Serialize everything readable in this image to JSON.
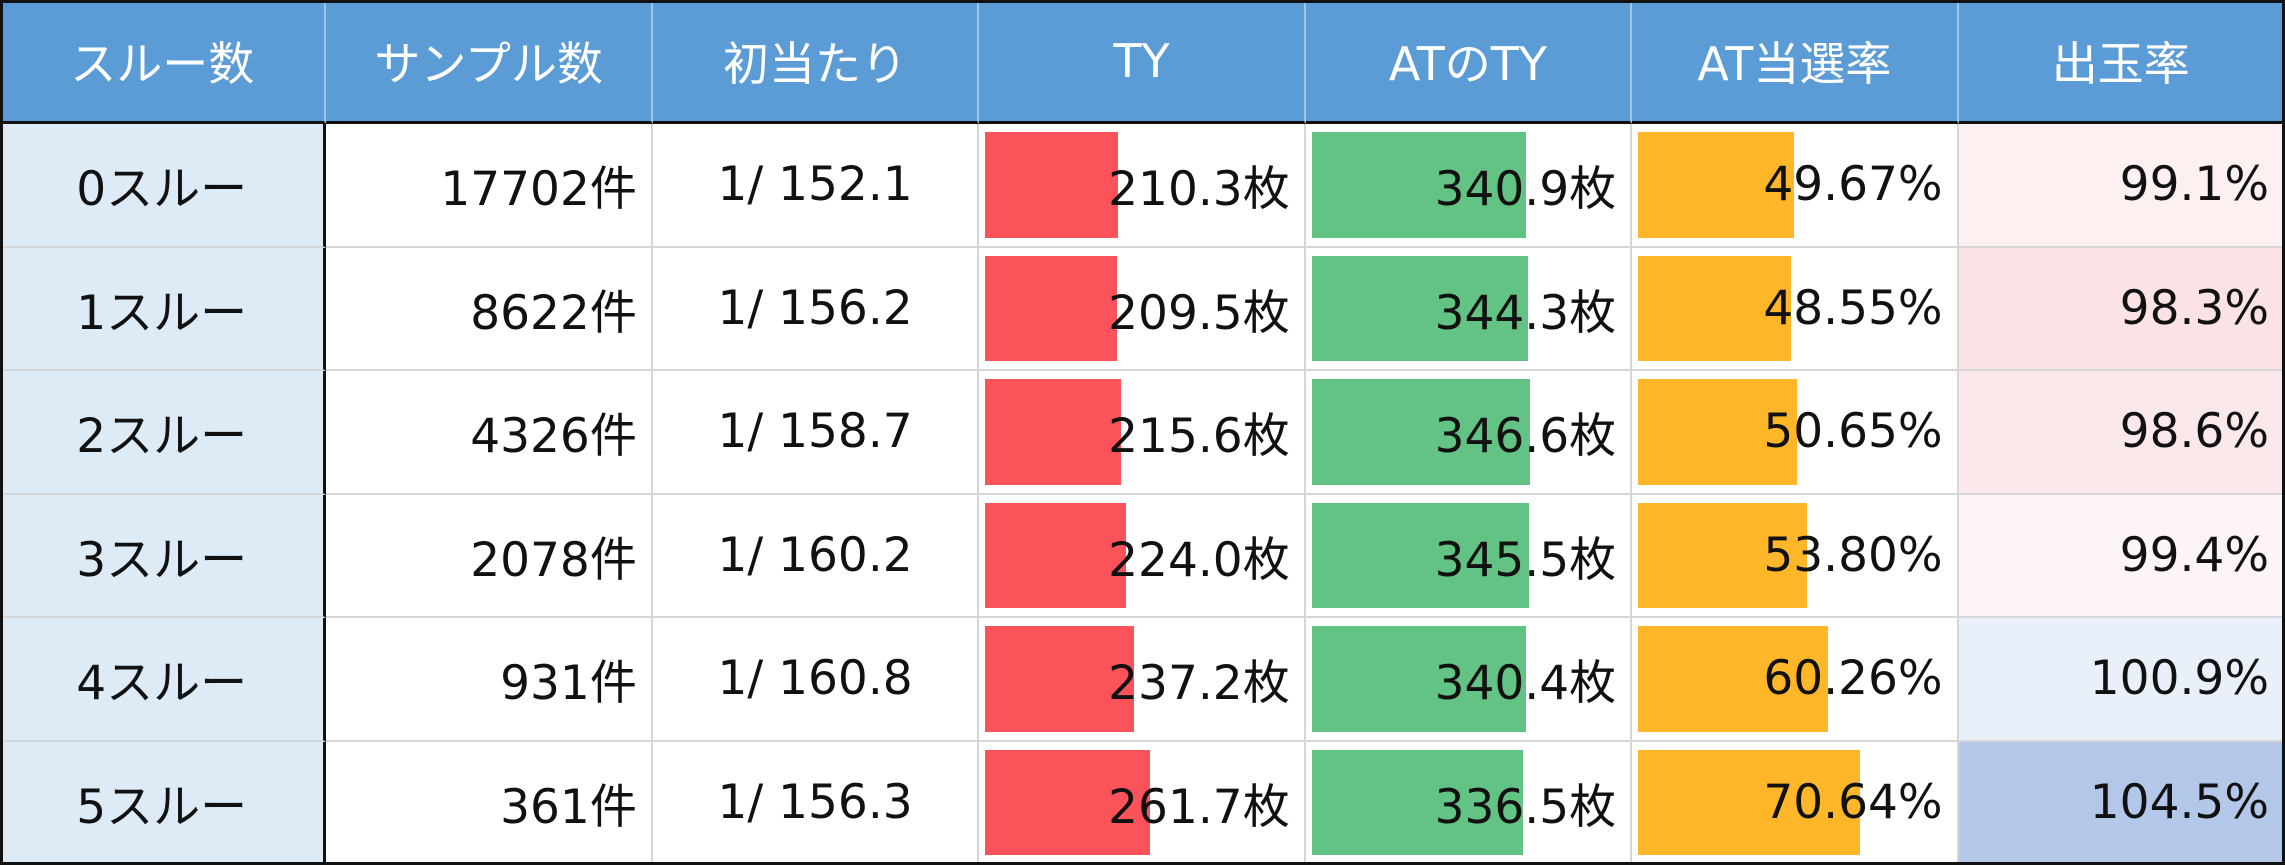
{
  "table": {
    "header": [
      "スルー数",
      "サンプル数",
      "初当たり",
      "TY",
      "ATのTY",
      "AT当選率",
      "出玉率"
    ],
    "rows": [
      [
        "0スルー",
        "17702件",
        "1/ 152.1",
        "210.3枚",
        "340.9枚",
        "49.67%",
        "99.1%"
      ],
      [
        "1スルー",
        "8622件",
        "1/ 156.2",
        "209.5枚",
        "344.3枚",
        "48.55%",
        "98.3%"
      ],
      [
        "2スルー",
        "4326件",
        "1/ 158.7",
        "215.6枚",
        "346.6枚",
        "50.65%",
        "98.6%"
      ],
      [
        "3スルー",
        "2078件",
        "1/ 160.2",
        "224.0枚",
        "345.5枚",
        "53.80%",
        "99.4%"
      ],
      [
        "4スルー",
        "931件",
        "1/ 160.8",
        "237.2枚",
        "340.4枚",
        "60.26%",
        "100.9%"
      ],
      [
        "5スルー",
        "361件",
        "1/ 156.3",
        "261.7枚",
        "336.5枚",
        "70.64%",
        "104.5%"
      ]
    ],
    "data_bars": [
      {
        "column": 3,
        "color": "#fc535b",
        "xlim": [
          0,
          500
        ]
      },
      {
        "column": 4,
        "color": "#63c385",
        "xlim": [
          0,
          500
        ]
      },
      {
        "column": 5,
        "color": "#ffb629",
        "xlim": [
          0,
          100
        ]
      }
    ],
    "cell_colors": {
      "column": 6,
      "colors": [
        "#fcf0f1",
        "#fbe3e5",
        "#fbe8ea",
        "#fcf4f5",
        "#eaf0f9",
        "#b3c8e8"
      ]
    }
  }
}
